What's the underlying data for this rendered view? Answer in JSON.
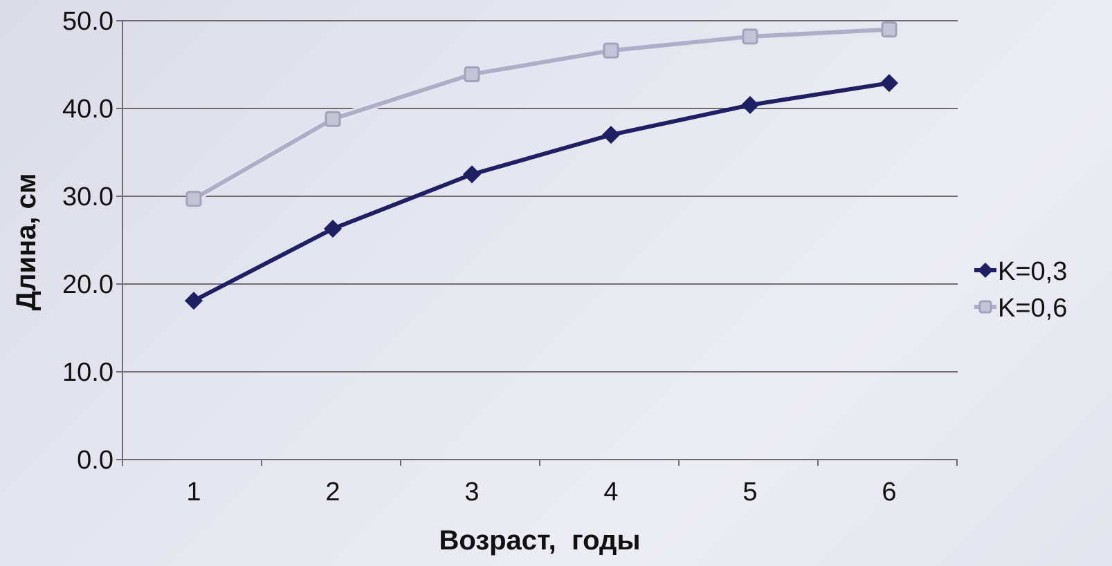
{
  "chart_data": {
    "type": "line",
    "xlabel": "Возраст,  годы",
    "ylabel": "Длина, см",
    "x": [
      1,
      2,
      3,
      4,
      5,
      6
    ],
    "x_tick_labels": [
      "1",
      "2",
      "3",
      "4",
      "5",
      "6"
    ],
    "ylim": [
      0,
      50
    ],
    "y_tick_values": [
      0,
      10,
      20,
      30,
      40,
      50
    ],
    "y_tick_labels": [
      "0.0",
      "10.0",
      "20.0",
      "30.0",
      "40.0",
      "50.0"
    ],
    "grid": true,
    "legend_position": "right",
    "series": [
      {
        "name": "K=0,3",
        "values": [
          18.1,
          26.3,
          32.5,
          37.0,
          40.4,
          42.9
        ],
        "color": "#1f1f63",
        "marker": "diamond"
      },
      {
        "name": "K=0,6",
        "values": [
          29.7,
          38.8,
          43.9,
          46.6,
          48.2,
          49.0
        ],
        "color": "#aeaec8",
        "marker": "square"
      }
    ]
  }
}
